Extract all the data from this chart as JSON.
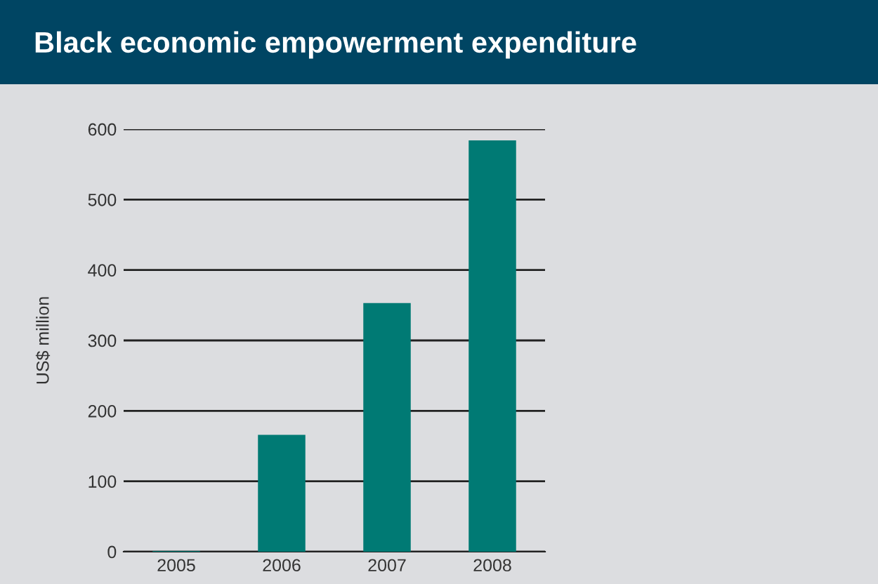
{
  "chart_data": {
    "type": "bar",
    "title": "Black economic empowerment expenditure",
    "ylabel": "US$ million",
    "categories": [
      "2005",
      "2006",
      "2007",
      "2008"
    ],
    "values": [
      1,
      166,
      353,
      584
    ],
    "color": "#007a74",
    "ylim": [
      0,
      600
    ],
    "yticks": [
      0,
      100,
      200,
      300,
      400,
      500,
      600
    ],
    "grid": "y"
  }
}
